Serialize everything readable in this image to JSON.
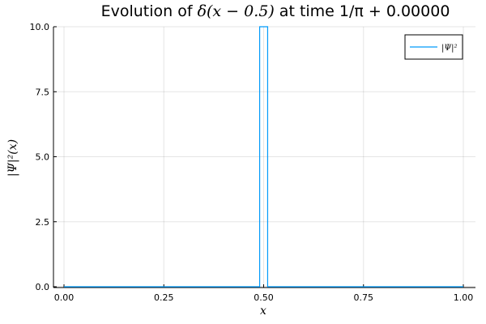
{
  "chart_data": {
    "type": "line",
    "title": {
      "prefix": "Evolution of ",
      "math": "δ(x − 0.5)",
      "suffix": " at time 1/π + 0.00000"
    },
    "xlabel": "x",
    "ylabel": "|Ψ|²(x)",
    "xlim": [
      0.0,
      1.0
    ],
    "ylim": [
      0.0,
      10.0
    ],
    "x_ticks": [
      "0.00",
      "0.25",
      "0.50",
      "0.75",
      "1.00"
    ],
    "y_ticks": [
      "0.0",
      "2.5",
      "5.0",
      "7.5",
      "10.0"
    ],
    "grid": true,
    "legend_position": "top-right",
    "series": [
      {
        "name": "|Ψ|²",
        "color": "#009AFA",
        "x": [
          0.0,
          0.49,
          0.49,
          0.51,
          0.51,
          1.0
        ],
        "y": [
          0.0,
          0.0,
          10.0,
          10.0,
          0.0,
          0.0
        ]
      }
    ]
  }
}
